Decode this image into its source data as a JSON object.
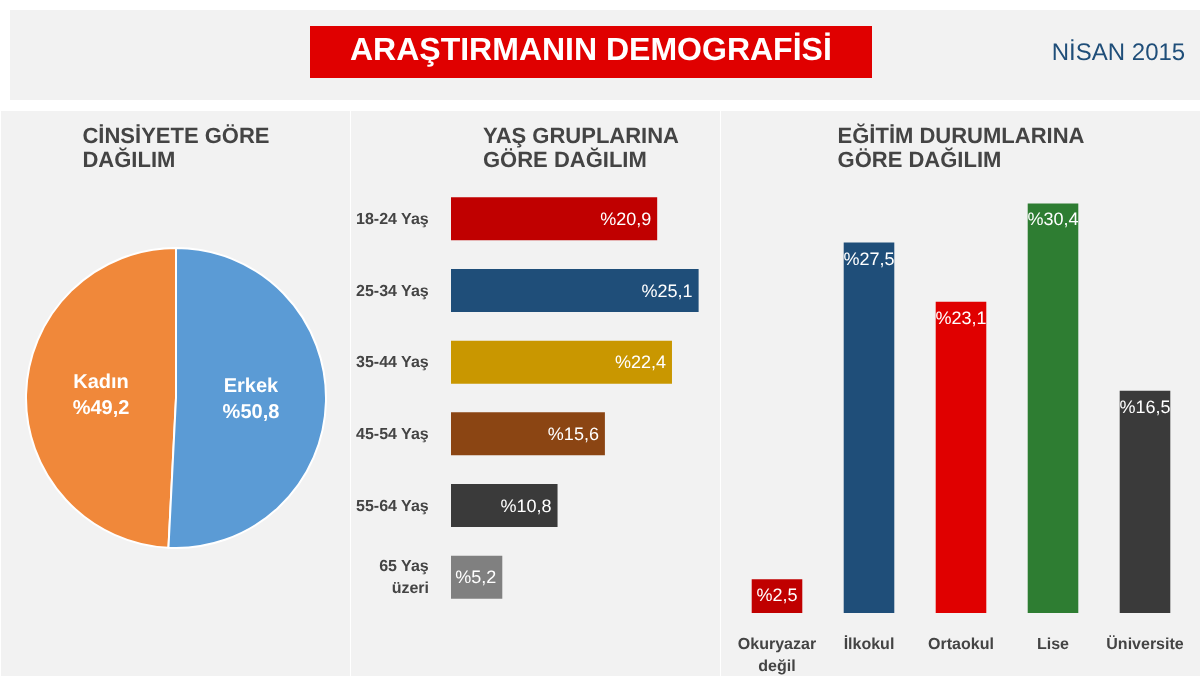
{
  "chart_data": [
    {
      "type": "pie",
      "title": "CİNSİYETE GÖRE DAĞILIM",
      "annotations": [
        "ARAŞTIRMANIN DEMOGRAFİSİ",
        "NİSAN 2015"
      ],
      "categories": [
        "Kadın",
        "Erkek"
      ],
      "values": [
        49.2,
        50.8
      ],
      "colors": [
        "#f0883a",
        "#5b9bd5"
      ],
      "value_labels": [
        "%49,2",
        "%50,8"
      ]
    },
    {
      "type": "bar",
      "orientation": "horizontal",
      "title": "YAŞ GRUPLARINA GÖRE DAĞILIM",
      "categories": [
        "18-24 Yaş",
        "25-34 Yaş",
        "35-44 Yaş",
        "45-54 Yaş",
        "55-64 Yaş",
        "65 Yaş üzeri"
      ],
      "values": [
        20.9,
        25.1,
        22.4,
        15.6,
        10.8,
        5.2
      ],
      "colors": [
        "#c00000",
        "#1f4e79",
        "#c99700",
        "#8b4513",
        "#3a3a3a",
        "#808080"
      ],
      "value_labels": [
        "%20,9",
        "%25,1",
        "%22,4",
        "%15,6",
        "%10,8",
        "%5,2"
      ]
    },
    {
      "type": "bar",
      "title": "EĞİTİM DURUMLARINA GÖRE DAĞILIM",
      "categories": [
        "Okuryazar değil",
        "İlkokul",
        "Ortaokul",
        "Lise",
        "Üniversite"
      ],
      "values": [
        2.5,
        27.5,
        23.1,
        30.4,
        16.5
      ],
      "colors": [
        "#c00000",
        "#1f4e79",
        "#e00000",
        "#2e7d32",
        "#3a3a3a"
      ],
      "value_labels": [
        "%2,5",
        "%27,5",
        "%23,1",
        "%30,4",
        "%16,5"
      ]
    }
  ]
}
